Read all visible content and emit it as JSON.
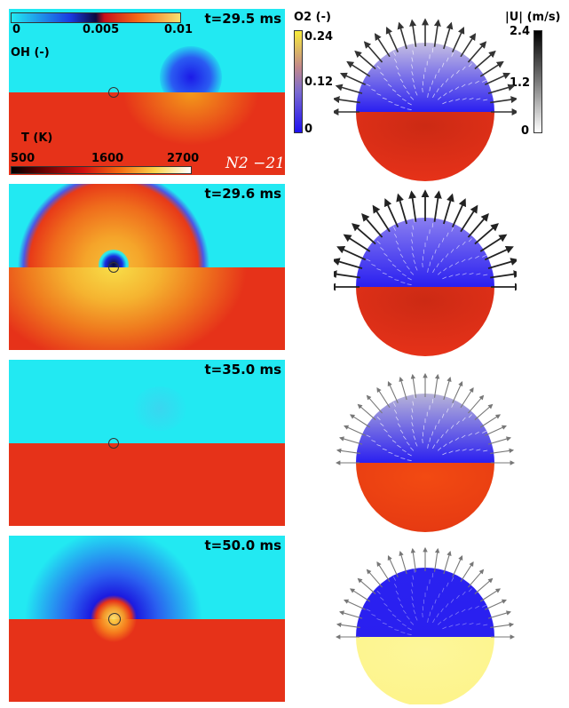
{
  "panels": [
    {
      "time": "t=29.5 ms"
    },
    {
      "time": "t=29.6 ms"
    },
    {
      "time": "t=35.0 ms"
    },
    {
      "time": "t=50.0 ms"
    }
  ],
  "oh_colorbar": {
    "label": "OH (-)",
    "ticks": [
      "0",
      "0.005",
      "0.01"
    ]
  },
  "t_colorbar": {
    "label": "T (K)",
    "ticks": [
      "500",
      "1600",
      "2700"
    ]
  },
  "case_label": "N2 −21",
  "o2_colorbar": {
    "label": "O2 (-)",
    "ticks": [
      "0.24",
      "0.12",
      "0"
    ]
  },
  "u_colorbar": {
    "label": "|U| (m/s)",
    "ticks": [
      "2.4",
      "1.2",
      "0"
    ]
  },
  "colors": {
    "cyan": "#22e9f2",
    "red": "#e63219",
    "blue": "#2a1ff0",
    "yellow": "#fdf48a"
  }
}
